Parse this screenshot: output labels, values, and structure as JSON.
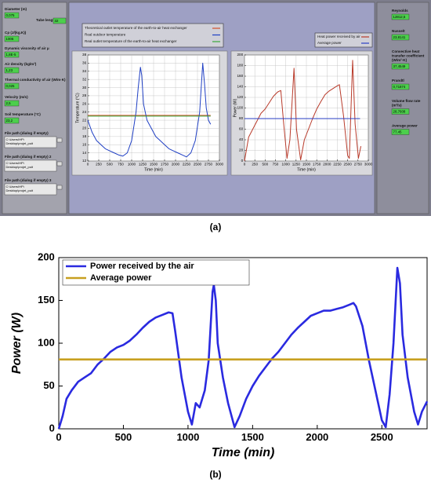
{
  "panel_a": {
    "caption": "(a)",
    "inputs": [
      {
        "label": "Diameter (m)",
        "value": "0,075"
      },
      {
        "label": "Tube length (m)",
        "value": "32"
      },
      {
        "label": "Cp (J/(kg.K))",
        "value": "1006"
      },
      {
        "label": "Dynamic viscosity of air μ",
        "value": "1,8E-5"
      },
      {
        "label": "Air density (kg/m³)",
        "value": "1,23"
      },
      {
        "label": "Thermal conductivity of air (W/m·K)",
        "value": "0,025"
      },
      {
        "label": "Velocity (m/s)",
        "value": "2,5"
      },
      {
        "label": "Soil temperature (°C)",
        "value": "23,2"
      },
      {
        "label": "File path (dialog if empty)",
        "value": "C:\\Users\\HP\\Desktop\\projet_puit"
      },
      {
        "label": "File path (dialog if empty) 2",
        "value": "C:\\Users\\HP\\Desktop\\projet_puit"
      },
      {
        "label": "File path (dialog if empty) 3",
        "value": "C:\\Users\\HP\\Desktop\\projet_puit"
      }
    ],
    "outputs": [
      {
        "label": "Reynolds",
        "value": "12812,5"
      },
      {
        "label": "Nusselt",
        "value": "23,8141"
      },
      {
        "label": "Convective heat transfer coefficient (W/m²·K)",
        "value": "37,4549"
      },
      {
        "label": "Prandtl",
        "value": "0,71874"
      },
      {
        "label": "Volume flow rate (m³/s)",
        "value": "28,7608"
      },
      {
        "label": "Average power",
        "value": "77,45"
      }
    ]
  },
  "panel_b": {
    "caption": "(b)"
  },
  "chart_data": [
    {
      "type": "line",
      "x_label": "Time (min)",
      "y_label": "Temperature (°C)",
      "xlim": [
        0,
        3000
      ],
      "xticks": [
        0,
        250,
        500,
        750,
        1000,
        1250,
        1500,
        1750,
        2000,
        2250,
        2500,
        2750,
        3000
      ],
      "ylim": [
        12,
        38
      ],
      "yticks": [
        12,
        14,
        16,
        18,
        20,
        22,
        24,
        26,
        28,
        30,
        32,
        34,
        36,
        38
      ],
      "grid": true,
      "series": [
        {
          "name": "Theoretical outlet temperature of the earth-to-air heat exchanger",
          "color": "#d4502a",
          "x": [
            0,
            2800
          ],
          "values": [
            23.2,
            23.2
          ]
        },
        {
          "name": "Real outdoor temperature",
          "color": "#1f3fc4",
          "x": [
            0,
            100,
            200,
            300,
            400,
            500,
            600,
            700,
            800,
            900,
            1000,
            1100,
            1150,
            1200,
            1230,
            1270,
            1350,
            1450,
            1550,
            1650,
            1750,
            1850,
            1950,
            2050,
            2150,
            2250,
            2350,
            2450,
            2550,
            2620,
            2660,
            2700,
            2750,
            2800
          ],
          "values": [
            22,
            19,
            17,
            16,
            15,
            14.5,
            14,
            13.5,
            13.2,
            14,
            17,
            24,
            30,
            35,
            33,
            26,
            22,
            20,
            18,
            17,
            16,
            15,
            14.5,
            14,
            13.5,
            13,
            14,
            17,
            24,
            36,
            31,
            25,
            22,
            21
          ]
        },
        {
          "name": "Real outlet temperature of the earth-to-air heat exchanger",
          "color": "#3aa83a",
          "x": [
            0,
            2800
          ],
          "values": [
            23,
            23
          ]
        }
      ]
    },
    {
      "type": "line",
      "x_label": "Time (min)",
      "y_label": "Power (W)",
      "xlim": [
        0,
        3000
      ],
      "xticks": [
        0,
        250,
        500,
        750,
        1000,
        1250,
        1500,
        1750,
        2000,
        2250,
        2500,
        2750,
        3000
      ],
      "ylim": [
        0,
        200
      ],
      "yticks": [
        0,
        20,
        40,
        60,
        80,
        100,
        120,
        140,
        160,
        180,
        200
      ],
      "grid": true,
      "series": [
        {
          "name": "Heat power received by air",
          "color": "#b83a2a",
          "x": [
            0,
            100,
            200,
            300,
            400,
            500,
            600,
            700,
            800,
            880,
            950,
            1030,
            1100,
            1200,
            1260,
            1360,
            1450,
            1550,
            1650,
            1750,
            1850,
            1950,
            2050,
            2150,
            2250,
            2300,
            2400,
            2500,
            2540,
            2620,
            2680,
            2760,
            2820
          ],
          "values": [
            0,
            45,
            60,
            75,
            90,
            98,
            110,
            122,
            130,
            133,
            70,
            5,
            40,
            175,
            60,
            2,
            40,
            60,
            80,
            98,
            112,
            125,
            132,
            137,
            142,
            144,
            85,
            10,
            5,
            190,
            70,
            5,
            28
          ]
        },
        {
          "name": "Average power",
          "color": "#2a3fc4",
          "x": [
            0,
            2800
          ],
          "values": [
            80,
            80
          ]
        }
      ]
    },
    {
      "type": "line",
      "x_label": "Time (min)",
      "y_label": "Power (W)",
      "xlim": [
        0,
        2850
      ],
      "xticks": [
        0,
        500,
        1000,
        1500,
        2000,
        2500
      ],
      "ylim": [
        0,
        200
      ],
      "yticks": [
        0,
        50,
        100,
        150,
        200
      ],
      "grid": false,
      "series": [
        {
          "name": "Power received by the air",
          "color": "#2a2ae0",
          "x": [
            0,
            30,
            60,
            100,
            150,
            200,
            250,
            300,
            350,
            400,
            450,
            500,
            550,
            600,
            650,
            700,
            750,
            800,
            850,
            880,
            900,
            950,
            1000,
            1030,
            1060,
            1090,
            1130,
            1160,
            1190,
            1200,
            1215,
            1230,
            1270,
            1310,
            1360,
            1400,
            1450,
            1500,
            1550,
            1600,
            1650,
            1700,
            1750,
            1800,
            1850,
            1900,
            1950,
            2000,
            2050,
            2100,
            2150,
            2200,
            2250,
            2280,
            2300,
            2350,
            2400,
            2450,
            2500,
            2530,
            2560,
            2590,
            2620,
            2640,
            2660,
            2700,
            2750,
            2780,
            2810,
            2850
          ],
          "values": [
            0,
            15,
            35,
            45,
            55,
            60,
            65,
            75,
            82,
            90,
            95,
            98,
            103,
            110,
            118,
            125,
            130,
            133,
            136,
            135,
            115,
            60,
            20,
            5,
            30,
            25,
            45,
            80,
            160,
            168,
            150,
            100,
            60,
            30,
            2,
            15,
            35,
            50,
            62,
            72,
            82,
            90,
            100,
            110,
            118,
            125,
            132,
            135,
            138,
            138,
            140,
            142,
            145,
            147,
            143,
            120,
            80,
            45,
            10,
            2,
            40,
            100,
            188,
            170,
            110,
            60,
            20,
            5,
            20,
            32
          ]
        },
        {
          "name": "Average power",
          "color": "#c8a020",
          "x": [
            0,
            2850
          ],
          "values": [
            81,
            81
          ]
        }
      ]
    }
  ]
}
